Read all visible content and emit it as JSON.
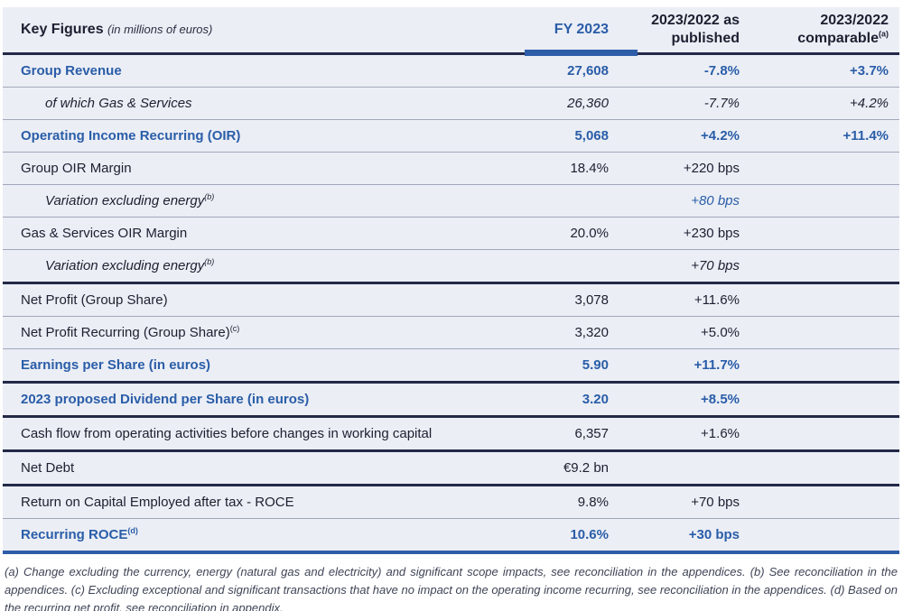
{
  "header": {
    "title": "Key Figures",
    "unit_note": "(in millions of euros)",
    "col_fy": "FY 2023",
    "col_published": "2023/2022 as published",
    "col_comparable": "2023/2022 comparable",
    "col_comparable_sup": "(a)"
  },
  "colors": {
    "accent_blue": "#2a5da8",
    "dark_line": "#232946",
    "row_background": "#ebeef5"
  },
  "chart_data": {
    "type": "table",
    "title": "Key Figures (in millions of euros)",
    "columns": [
      "Key Figures (in millions of euros)",
      "FY 2023",
      "2023/2022 as published",
      "2023/2022 comparable(a)"
    ]
  },
  "table": {
    "rows": [
      {
        "label": "Group Revenue",
        "fy": "27,608",
        "pub": "-7.8%",
        "cmp": "+3.7%"
      },
      {
        "label": "of which Gas & Services",
        "fy": "26,360",
        "pub": "-7.7%",
        "cmp": "+4.2%"
      },
      {
        "label": "Operating Income Recurring (OIR)",
        "fy": "5,068",
        "pub": "+4.2%",
        "cmp": "+11.4%"
      },
      {
        "label": "Group OIR Margin",
        "fy": "18.4%",
        "pub": "+220 bps",
        "cmp": ""
      },
      {
        "label": "Variation excluding energy",
        "sup": "(b)",
        "fy": "",
        "pub": "+80 bps",
        "cmp": ""
      },
      {
        "label": "Gas & Services OIR Margin",
        "fy": "20.0%",
        "pub": "+230 bps",
        "cmp": ""
      },
      {
        "label": "Variation excluding energy",
        "sup": "(b)",
        "fy": "",
        "pub": "+70 bps",
        "cmp": ""
      },
      {
        "label": "Net Profit (Group Share)",
        "fy": "3,078",
        "pub": "+11.6%",
        "cmp": ""
      },
      {
        "label": "Net Profit Recurring (Group Share)",
        "sup": "(c)",
        "fy": "3,320",
        "pub": "+5.0%",
        "cmp": ""
      },
      {
        "label": "Earnings per Share (in euros)",
        "fy": "5.90",
        "pub": "+11.7%",
        "cmp": ""
      },
      {
        "label": "2023 proposed Dividend per Share (in euros)",
        "fy": "3.20",
        "pub": "+8.5%",
        "cmp": ""
      },
      {
        "label": "Cash flow from operating activities before changes in working capital",
        "fy": "6,357",
        "pub": "+1.6%",
        "cmp": ""
      },
      {
        "label": "Net Debt",
        "fy": "€9.2 bn",
        "pub": "",
        "cmp": ""
      },
      {
        "label": "Return on Capital Employed after tax - ROCE",
        "fy": "9.8%",
        "pub": "+70 bps",
        "cmp": ""
      },
      {
        "label": "Recurring ROCE",
        "sup": "(d)",
        "fy": "10.6%",
        "pub": "+30 bps",
        "cmp": ""
      }
    ]
  },
  "footnotes": "(a) Change excluding the currency, energy (natural gas and electricity) and significant scope impacts, see reconciliation in the appendices. (b) See reconciliation in the appendices. (c) Excluding exceptional and significant transactions that have no impact on the operating income recurring, see reconciliation in the appendices. (d) Based on the recurring net profit, see reconciliation in appendix."
}
